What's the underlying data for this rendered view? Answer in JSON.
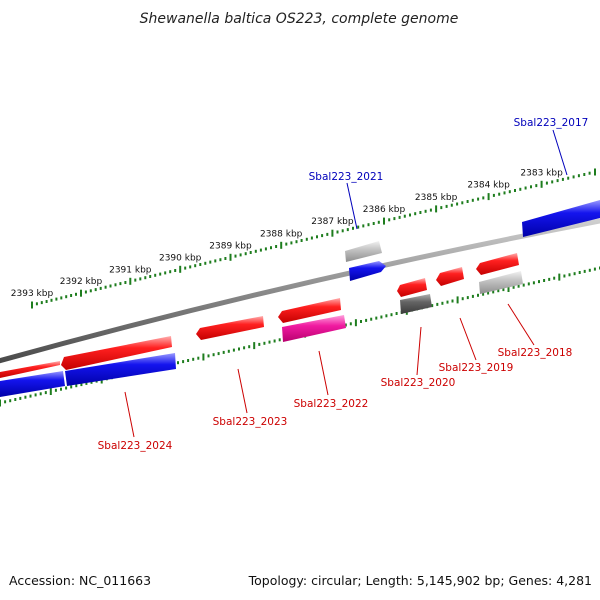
{
  "title": "Shewanella baltica OS223, complete genome",
  "footer": {
    "accession": "Accession: NC_011663",
    "summary": "Topology: circular; Length: 5,145,902 bp; Genes: 4,281"
  },
  "colors": {
    "backbone": "#8a8a8a",
    "tick_green": "#1e7d1e",
    "forward_gene": "#ff1a1a",
    "reverse_gene": "#1010ee",
    "pseudo_gene": "#bdbdbd",
    "dark_gene": "#5e5e5e",
    "magenta_gene": "#ee1a9c",
    "label_red": "#cc0000",
    "label_blue": "#0000bb"
  },
  "ruler": {
    "outer_labels": [
      "2393 kbp",
      "2392 kbp",
      "2391 kbp",
      "2390 kbp",
      "2389 kbp",
      "2388 kbp",
      "2387 kbp",
      "2386 kbp",
      "2385 kbp",
      "2384 kbp",
      "2383 kbp"
    ]
  },
  "genes": [
    {
      "id": "Sbal223_2024",
      "label_color": "red"
    },
    {
      "id": "Sbal223_2023",
      "label_color": "red"
    },
    {
      "id": "Sbal223_2022",
      "label_color": "red"
    },
    {
      "id": "Sbal223_2021",
      "label_color": "blue"
    },
    {
      "id": "Sbal223_2020",
      "label_color": "red"
    },
    {
      "id": "Sbal223_2019",
      "label_color": "red"
    },
    {
      "id": "Sbal223_2018",
      "label_color": "red"
    },
    {
      "id": "Sbal223_2017",
      "label_color": "blue"
    }
  ]
}
